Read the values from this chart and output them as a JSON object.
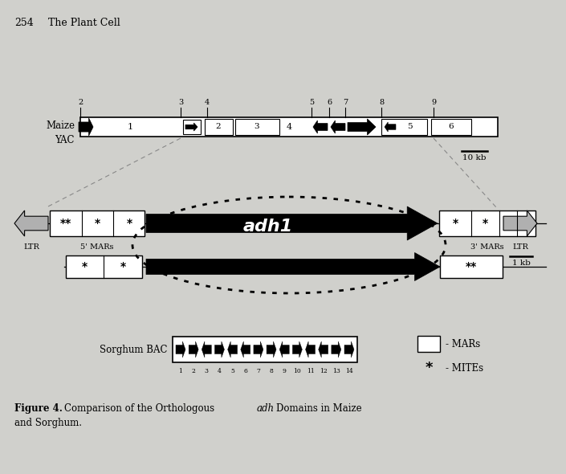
{
  "bg_color": "#cccccc",
  "title_page": "254    The Plant Cell",
  "maize_label": "Maize\nYAC",
  "sorghum_label": "Sorghum BAC",
  "legend_mars": "- MARs",
  "legend_mites": "- MITEs",
  "scale_yac": "10 kb",
  "scale_adh": "1 kb",
  "adh1_label": "adh1",
  "ltr_label": "LTR",
  "5mar_label": "5' MARs",
  "3mar_label": "3' MARs"
}
